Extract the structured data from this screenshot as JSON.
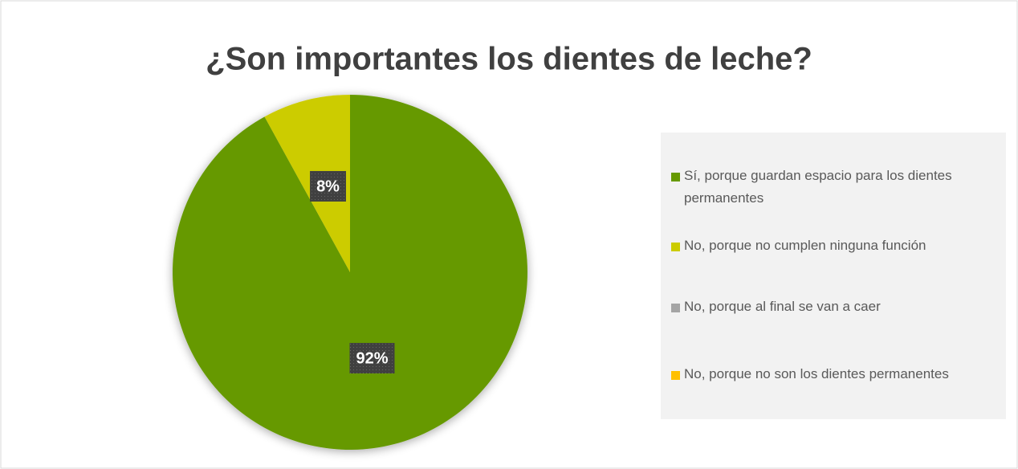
{
  "chart_data": {
    "type": "pie",
    "title": "¿Son importantes los dientes de leche?",
    "categories": [
      "Sí, porque guardan espacio para los dientes permanentes",
      "No, porque no cumplen ninguna función",
      "No, porque al final se van a caer",
      "No, porque no son los dientes permanentes"
    ],
    "values": [
      92,
      8,
      0,
      0
    ],
    "value_labels": [
      "92%",
      "8%",
      null,
      null
    ],
    "colors": [
      "#669900",
      "#cccc00",
      "#a5a5a5",
      "#ffc000"
    ],
    "legend": "right"
  }
}
